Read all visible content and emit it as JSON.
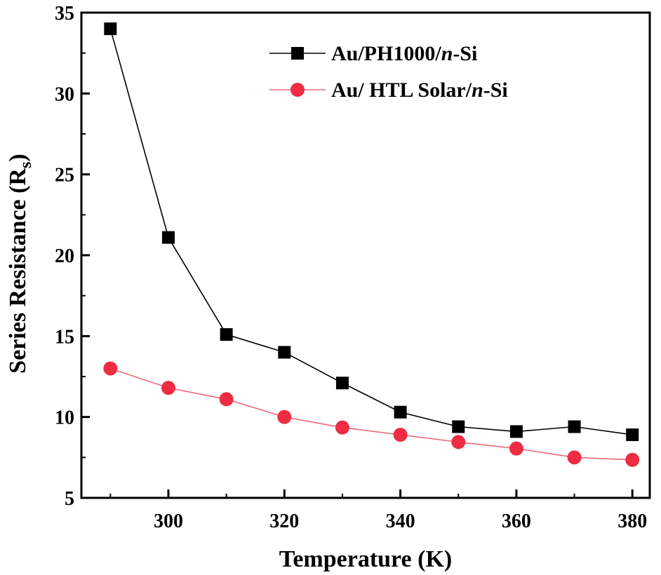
{
  "chart_data": {
    "type": "line",
    "xlabel": "Temperature (K)",
    "ylabel": "Series Resistance (R",
    "ylabel_sub": "s",
    "ylabel_close": ")",
    "xlim": [
      285,
      383
    ],
    "ylim": [
      5,
      35
    ],
    "xticks": [
      300,
      320,
      340,
      360,
      380
    ],
    "yticks": [
      5,
      10,
      15,
      20,
      25,
      30,
      35
    ],
    "legend_position": "top-right",
    "series": [
      {
        "name_parts": [
          "Au/PH1000/",
          "n",
          "-Si"
        ],
        "marker": "square",
        "line_color": "#000000",
        "marker_color": "#000000",
        "x": [
          290,
          300,
          310,
          320,
          330,
          340,
          350,
          360,
          370,
          380
        ],
        "y": [
          34.0,
          21.1,
          15.1,
          14.0,
          12.1,
          10.3,
          9.4,
          9.1,
          9.4,
          8.9
        ]
      },
      {
        "name_parts": [
          "Au/ HTL Solar/",
          "n",
          "-Si"
        ],
        "marker": "circle",
        "line_color": "#e86a78",
        "marker_color": "#ee2d43",
        "x": [
          290,
          300,
          310,
          320,
          330,
          340,
          350,
          360,
          370,
          380
        ],
        "y": [
          13.0,
          11.8,
          11.1,
          10.0,
          9.35,
          8.9,
          8.45,
          8.05,
          7.5,
          7.35
        ]
      }
    ]
  }
}
